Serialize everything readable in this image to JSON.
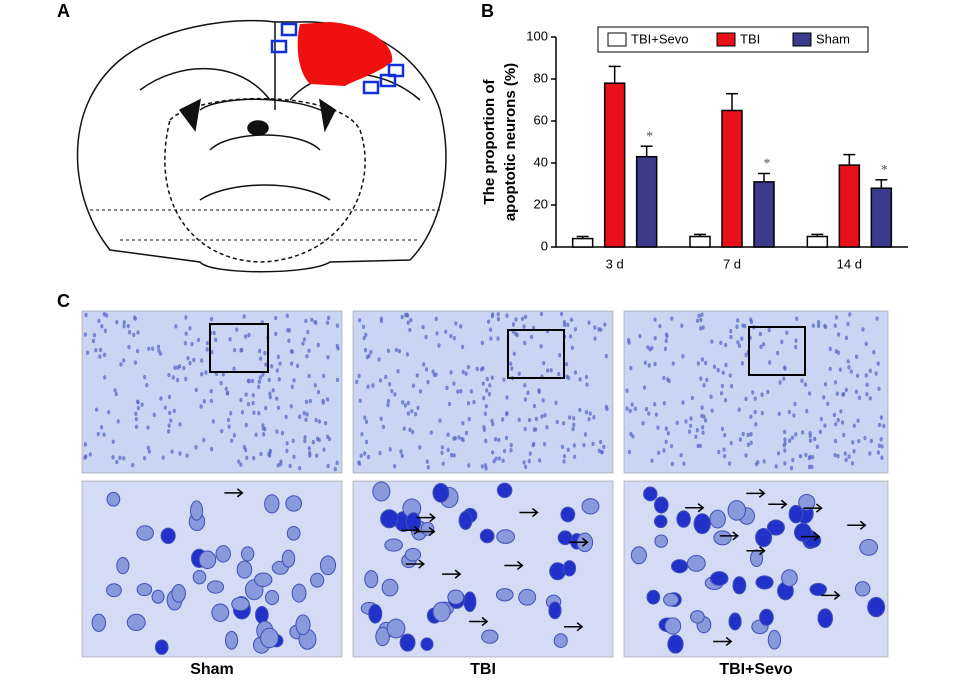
{
  "panels": {
    "a": "A",
    "b": "B",
    "c": "C"
  },
  "chart_data": {
    "type": "bar",
    "ylabel": [
      "The proportion of",
      "apoptotic neurons (%)"
    ],
    "categories": [
      "3 d",
      "7 d",
      "14 d"
    ],
    "series": [
      {
        "name": "TBI+Sevo",
        "color": "#ffffff",
        "values": [
          4,
          5,
          5
        ],
        "errors": [
          1,
          1,
          1
        ]
      },
      {
        "name": "TBI",
        "color": "#e8101a",
        "values": [
          78,
          65,
          39
        ],
        "errors": [
          8,
          8,
          5
        ]
      },
      {
        "name": "Sham",
        "color": "#3b3a8c",
        "values": [
          43,
          31,
          28
        ],
        "errors": [
          5,
          4,
          4
        ],
        "significance": [
          "*",
          "*",
          "*"
        ]
      }
    ],
    "ylim": [
      0,
      100
    ],
    "yticks": [
      0,
      20,
      40,
      60,
      80,
      100
    ],
    "grid": false
  },
  "micrographs": {
    "labels": [
      "Sham",
      "TBI",
      "TBI+Sevo"
    ]
  }
}
